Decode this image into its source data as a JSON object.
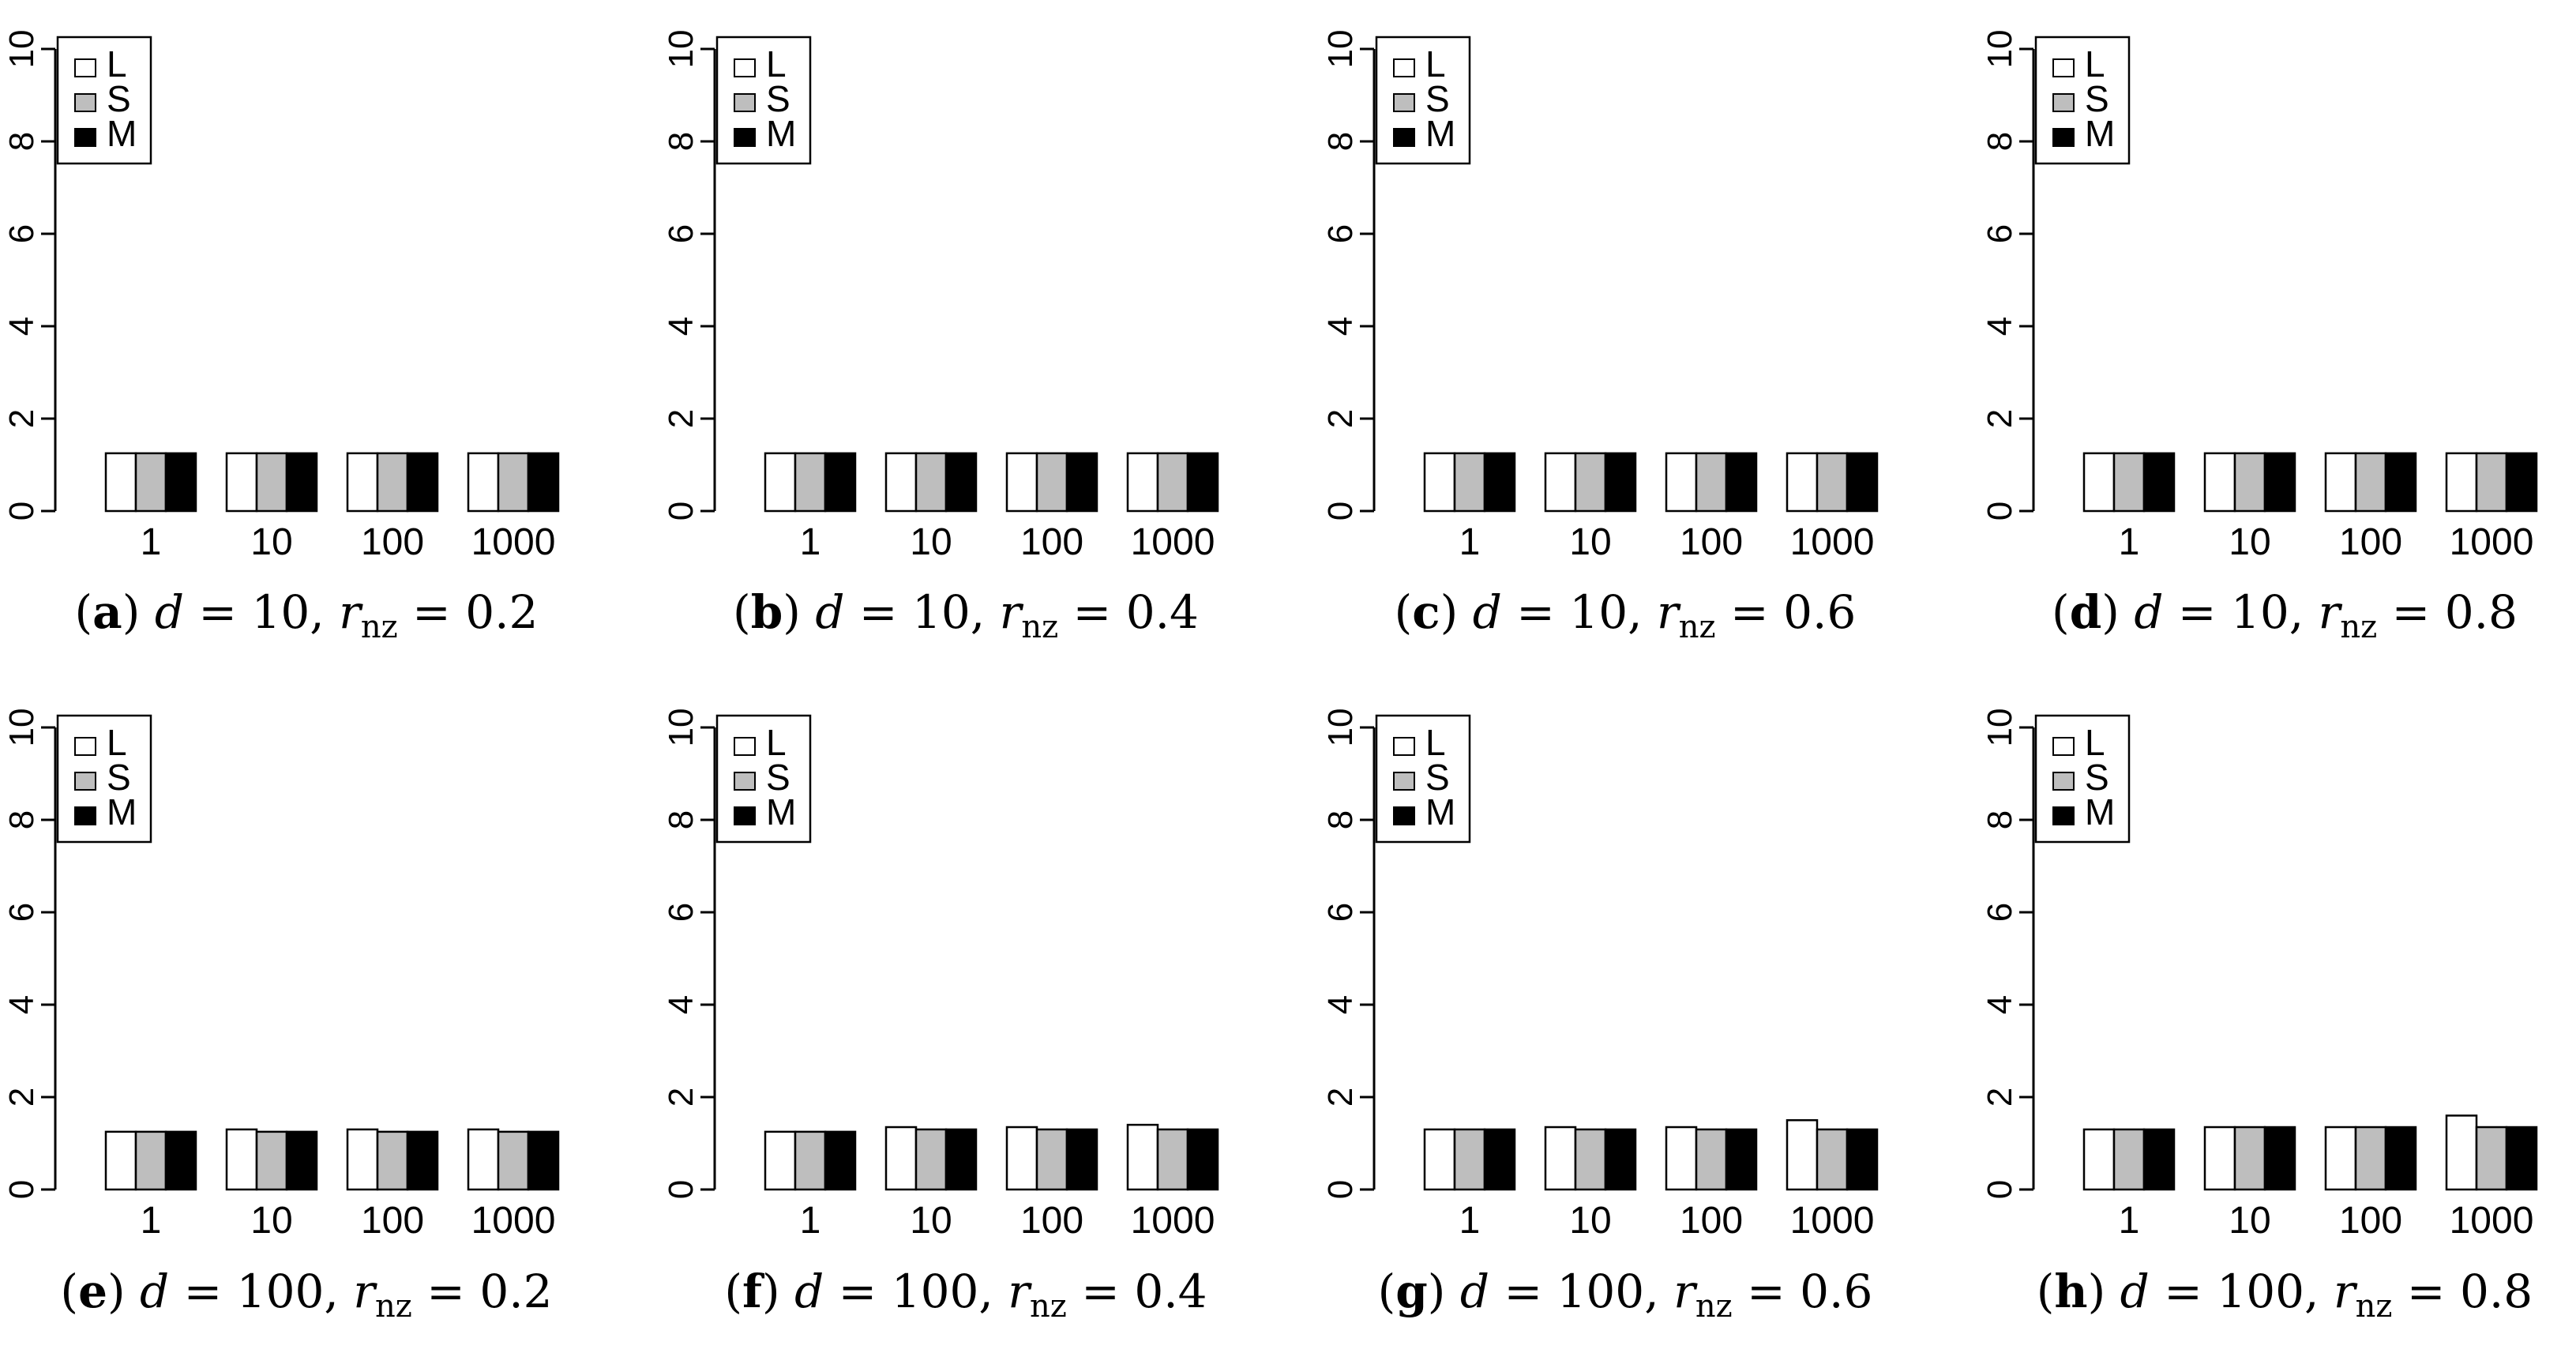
{
  "figure": {
    "colors": {
      "L": "#ffffff",
      "S": "#bebebe",
      "M": "#000000",
      "axis": "#000000"
    }
  },
  "chart_data": [
    {
      "type": "bar",
      "panel": "a",
      "caption_label": "a",
      "caption_parts": {
        "d": "10",
        "r": "0.2"
      },
      "categories": [
        "1",
        "10",
        "100",
        "1000"
      ],
      "series": [
        {
          "name": "L",
          "values": [
            1.25,
            1.25,
            1.25,
            1.25
          ]
        },
        {
          "name": "S",
          "values": [
            1.25,
            1.25,
            1.25,
            1.25
          ]
        },
        {
          "name": "M",
          "values": [
            1.25,
            1.25,
            1.25,
            1.25
          ]
        }
      ],
      "ylim": [
        0,
        10
      ],
      "yticks": [
        "0",
        "2",
        "4",
        "6",
        "8",
        "10"
      ],
      "legend": "top-left",
      "grid": false
    },
    {
      "type": "bar",
      "panel": "b",
      "caption_label": "b",
      "caption_parts": {
        "d": "10",
        "r": "0.4"
      },
      "categories": [
        "1",
        "10",
        "100",
        "1000"
      ],
      "series": [
        {
          "name": "L",
          "values": [
            1.25,
            1.25,
            1.25,
            1.25
          ]
        },
        {
          "name": "S",
          "values": [
            1.25,
            1.25,
            1.25,
            1.25
          ]
        },
        {
          "name": "M",
          "values": [
            1.25,
            1.25,
            1.25,
            1.25
          ]
        }
      ],
      "ylim": [
        0,
        10
      ],
      "yticks": [
        "0",
        "2",
        "4",
        "6",
        "8",
        "10"
      ],
      "legend": "top-left",
      "grid": false
    },
    {
      "type": "bar",
      "panel": "c",
      "caption_label": "c",
      "caption_parts": {
        "d": "10",
        "r": "0.6"
      },
      "categories": [
        "1",
        "10",
        "100",
        "1000"
      ],
      "series": [
        {
          "name": "L",
          "values": [
            1.25,
            1.25,
            1.25,
            1.25
          ]
        },
        {
          "name": "S",
          "values": [
            1.25,
            1.25,
            1.25,
            1.25
          ]
        },
        {
          "name": "M",
          "values": [
            1.25,
            1.25,
            1.25,
            1.25
          ]
        }
      ],
      "ylim": [
        0,
        10
      ],
      "yticks": [
        "0",
        "2",
        "4",
        "6",
        "8",
        "10"
      ],
      "legend": "top-left",
      "grid": false
    },
    {
      "type": "bar",
      "panel": "d",
      "caption_label": "d",
      "caption_parts": {
        "d": "10",
        "r": "0.8"
      },
      "categories": [
        "1",
        "10",
        "100",
        "1000"
      ],
      "series": [
        {
          "name": "L",
          "values": [
            1.25,
            1.25,
            1.25,
            1.25
          ]
        },
        {
          "name": "S",
          "values": [
            1.25,
            1.25,
            1.25,
            1.25
          ]
        },
        {
          "name": "M",
          "values": [
            1.25,
            1.25,
            1.25,
            1.25
          ]
        }
      ],
      "ylim": [
        0,
        10
      ],
      "yticks": [
        "0",
        "2",
        "4",
        "6",
        "8",
        "10"
      ],
      "legend": "top-left",
      "grid": false
    },
    {
      "type": "bar",
      "panel": "e",
      "caption_label": "e",
      "caption_parts": {
        "d": "100",
        "r": "0.2"
      },
      "categories": [
        "1",
        "10",
        "100",
        "1000"
      ],
      "series": [
        {
          "name": "L",
          "values": [
            1.25,
            1.3,
            1.3,
            1.3
          ]
        },
        {
          "name": "S",
          "values": [
            1.25,
            1.25,
            1.25,
            1.25
          ]
        },
        {
          "name": "M",
          "values": [
            1.25,
            1.25,
            1.25,
            1.25
          ]
        }
      ],
      "ylim": [
        0,
        10
      ],
      "yticks": [
        "0",
        "2",
        "4",
        "6",
        "8",
        "10"
      ],
      "legend": "top-left",
      "grid": false
    },
    {
      "type": "bar",
      "panel": "f",
      "caption_label": "f",
      "caption_parts": {
        "d": "100",
        "r": "0.4"
      },
      "categories": [
        "1",
        "10",
        "100",
        "1000"
      ],
      "series": [
        {
          "name": "L",
          "values": [
            1.25,
            1.35,
            1.35,
            1.4
          ]
        },
        {
          "name": "S",
          "values": [
            1.25,
            1.3,
            1.3,
            1.3
          ]
        },
        {
          "name": "M",
          "values": [
            1.25,
            1.3,
            1.3,
            1.3
          ]
        }
      ],
      "ylim": [
        0,
        10
      ],
      "yticks": [
        "0",
        "2",
        "4",
        "6",
        "8",
        "10"
      ],
      "legend": "top-left",
      "grid": false
    },
    {
      "type": "bar",
      "panel": "g",
      "caption_label": "g",
      "caption_parts": {
        "d": "100",
        "r": "0.6"
      },
      "categories": [
        "1",
        "10",
        "100",
        "1000"
      ],
      "series": [
        {
          "name": "L",
          "values": [
            1.3,
            1.35,
            1.35,
            1.5
          ]
        },
        {
          "name": "S",
          "values": [
            1.3,
            1.3,
            1.3,
            1.3
          ]
        },
        {
          "name": "M",
          "values": [
            1.3,
            1.3,
            1.3,
            1.3
          ]
        }
      ],
      "ylim": [
        0,
        10
      ],
      "yticks": [
        "0",
        "2",
        "4",
        "6",
        "8",
        "10"
      ],
      "legend": "top-left",
      "grid": false
    },
    {
      "type": "bar",
      "panel": "h",
      "caption_label": "h",
      "caption_parts": {
        "d": "100",
        "r": "0.8"
      },
      "categories": [
        "1",
        "10",
        "100",
        "1000"
      ],
      "series": [
        {
          "name": "L",
          "values": [
            1.3,
            1.35,
            1.35,
            1.6
          ]
        },
        {
          "name": "S",
          "values": [
            1.3,
            1.35,
            1.35,
            1.35
          ]
        },
        {
          "name": "M",
          "values": [
            1.3,
            1.35,
            1.35,
            1.35
          ]
        }
      ],
      "ylim": [
        0,
        10
      ],
      "yticks": [
        "0",
        "2",
        "4",
        "6",
        "8",
        "10"
      ],
      "legend": "top-left",
      "grid": false
    }
  ]
}
